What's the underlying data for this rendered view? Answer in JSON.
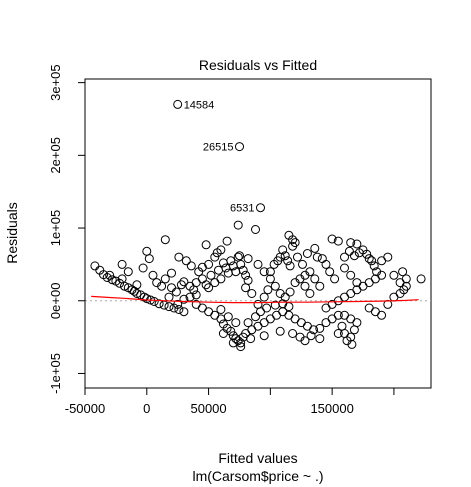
{
  "chart_data": {
    "type": "scatter",
    "title": "Residuals vs Fitted",
    "xlabel": "Fitted values",
    "sublabel": "lm(Carsom$price ~ .)",
    "ylabel": "Residuals",
    "xlim": [
      -50000,
      230000
    ],
    "ylim": [
      -120000,
      305000
    ],
    "x_ticks": [
      {
        "value": -50000,
        "label": "-50000"
      },
      {
        "value": 0,
        "label": "0"
      },
      {
        "value": 50000,
        "label": "50000"
      },
      {
        "value": 150000,
        "label": "150000"
      }
    ],
    "x_minor_ticks": [
      100000,
      200000
    ],
    "y_ticks": [
      {
        "value": -100000,
        "label": "-1e+05"
      },
      {
        "value": 0,
        "label": "0e+00"
      },
      {
        "value": 100000,
        "label": "1e+05"
      },
      {
        "value": 200000,
        "label": "2e+05"
      },
      {
        "value": 300000,
        "label": "3e+05"
      }
    ],
    "grid": false,
    "reference_line_y": 0,
    "colors": {
      "points": "#000000",
      "smoother": "#ff0000",
      "reference": "#aaaaaa"
    },
    "outliers": [
      {
        "label": "14584",
        "x": 25000,
        "y": 270000
      },
      {
        "label": "26515",
        "x": 75000,
        "y": 212000
      },
      {
        "label": "6531",
        "x": 92000,
        "y": 128000
      }
    ],
    "smoother": {
      "x": [
        -45000,
        -30000,
        -15000,
        0,
        15000,
        30000,
        50000,
        70000,
        90000,
        110000,
        130000,
        150000,
        170000,
        190000,
        210000,
        220000
      ],
      "y": [
        6000,
        4500,
        3000,
        1000,
        0,
        -1000,
        -2000,
        -2500,
        -2500,
        -2000,
        -2000,
        -1500,
        -1000,
        -500,
        500,
        1500
      ]
    },
    "points": [
      [
        -42000,
        48000
      ],
      [
        -38000,
        42000
      ],
      [
        -35000,
        36000
      ],
      [
        -32000,
        32000
      ],
      [
        -30000,
        35000
      ],
      [
        -28000,
        29000
      ],
      [
        -25000,
        27000
      ],
      [
        -22000,
        24000
      ],
      [
        -20000,
        30000
      ],
      [
        -18000,
        20000
      ],
      [
        -15000,
        18000
      ],
      [
        -12000,
        15000
      ],
      [
        -10000,
        13000
      ],
      [
        -8000,
        10000
      ],
      [
        -5000,
        8000
      ],
      [
        -2000,
        5000
      ],
      [
        0,
        3000
      ],
      [
        3000,
        1000
      ],
      [
        6000,
        -1000
      ],
      [
        10000,
        -4000
      ],
      [
        14000,
        -6000
      ],
      [
        18000,
        -8000
      ],
      [
        22000,
        -10000
      ],
      [
        26000,
        -12000
      ],
      [
        30000,
        -15000
      ],
      [
        -20000,
        50000
      ],
      [
        -15000,
        40000
      ],
      [
        -8000,
        22000
      ],
      [
        -3000,
        45000
      ],
      [
        0,
        68000
      ],
      [
        2000,
        58000
      ],
      [
        5000,
        35000
      ],
      [
        8000,
        25000
      ],
      [
        12000,
        20000
      ],
      [
        15000,
        30000
      ],
      [
        20000,
        18000
      ],
      [
        24000,
        12000
      ],
      [
        28000,
        22000
      ],
      [
        30000,
        26000
      ],
      [
        35000,
        20000
      ],
      [
        38000,
        15000
      ],
      [
        40000,
        25000
      ],
      [
        45000,
        30000
      ],
      [
        48000,
        22000
      ],
      [
        50000,
        18000
      ],
      [
        52000,
        35000
      ],
      [
        55000,
        25000
      ],
      [
        58000,
        42000
      ],
      [
        60000,
        30000
      ],
      [
        62000,
        52000
      ],
      [
        64000,
        45000
      ],
      [
        66000,
        38000
      ],
      [
        68000,
        55000
      ],
      [
        70000,
        48000
      ],
      [
        72000,
        40000
      ],
      [
        74000,
        60000
      ],
      [
        76000,
        50000
      ],
      [
        78000,
        42000
      ],
      [
        80000,
        35000
      ],
      [
        82000,
        28000
      ],
      [
        20000,
        38000
      ],
      [
        26000,
        60000
      ],
      [
        32000,
        55000
      ],
      [
        36000,
        48000
      ],
      [
        42000,
        40000
      ],
      [
        45000,
        46000
      ],
      [
        50000,
        50000
      ],
      [
        55000,
        60000
      ],
      [
        60000,
        70000
      ],
      [
        65000,
        82000
      ],
      [
        75000,
        62000
      ],
      [
        82000,
        58000
      ],
      [
        90000,
        50000
      ],
      [
        95000,
        40000
      ],
      [
        100000,
        30000
      ],
      [
        15000,
        84000
      ],
      [
        48000,
        77000
      ],
      [
        74000,
        104000
      ],
      [
        88000,
        98000
      ],
      [
        57000,
        66000
      ],
      [
        40000,
        -5000
      ],
      [
        45000,
        -10000
      ],
      [
        50000,
        -15000
      ],
      [
        55000,
        -20000
      ],
      [
        60000,
        -25000
      ],
      [
        62000,
        -32000
      ],
      [
        65000,
        -38000
      ],
      [
        68000,
        -42000
      ],
      [
        70000,
        -48000
      ],
      [
        72000,
        -52000
      ],
      [
        74000,
        -55000
      ],
      [
        76000,
        -58000
      ],
      [
        78000,
        -50000
      ],
      [
        80000,
        -45000
      ],
      [
        85000,
        -40000
      ],
      [
        90000,
        -35000
      ],
      [
        95000,
        -30000
      ],
      [
        100000,
        -25000
      ],
      [
        105000,
        -20000
      ],
      [
        108000,
        -42000
      ],
      [
        60000,
        -12000
      ],
      [
        66000,
        -22000
      ],
      [
        72000,
        -30000
      ],
      [
        82000,
        -30000
      ],
      [
        88000,
        -22000
      ],
      [
        92000,
        -15000
      ],
      [
        97000,
        -10000
      ],
      [
        104000,
        -6000
      ],
      [
        110000,
        -4000
      ],
      [
        115000,
        -8000
      ],
      [
        62000,
        -45000
      ],
      [
        70000,
        -58000
      ],
      [
        76000,
        -63000
      ],
      [
        84000,
        -52000
      ],
      [
        95000,
        -48000
      ],
      [
        100000,
        40000
      ],
      [
        103000,
        50000
      ],
      [
        106000,
        55000
      ],
      [
        108000,
        60000
      ],
      [
        110000,
        70000
      ],
      [
        112000,
        62000
      ],
      [
        114000,
        55000
      ],
      [
        116000,
        48000
      ],
      [
        118000,
        75000
      ],
      [
        120000,
        80000
      ],
      [
        104000,
        20000
      ],
      [
        108000,
        10000
      ],
      [
        112000,
        5000
      ],
      [
        116000,
        12000
      ],
      [
        120000,
        25000
      ],
      [
        124000,
        30000
      ],
      [
        128000,
        35000
      ],
      [
        132000,
        40000
      ],
      [
        136000,
        30000
      ],
      [
        140000,
        20000
      ],
      [
        115000,
        90000
      ],
      [
        118000,
        84000
      ],
      [
        122000,
        60000
      ],
      [
        126000,
        50000
      ],
      [
        130000,
        65000
      ],
      [
        110000,
        -15000
      ],
      [
        115000,
        -20000
      ],
      [
        120000,
        -25000
      ],
      [
        125000,
        -30000
      ],
      [
        130000,
        -35000
      ],
      [
        135000,
        -40000
      ],
      [
        140000,
        -38000
      ],
      [
        145000,
        -30000
      ],
      [
        150000,
        -25000
      ],
      [
        155000,
        -20000
      ],
      [
        118000,
        -45000
      ],
      [
        124000,
        -50000
      ],
      [
        128000,
        -55000
      ],
      [
        133000,
        -48000
      ],
      [
        140000,
        -52000
      ],
      [
        145000,
        -10000
      ],
      [
        150000,
        -5000
      ],
      [
        155000,
        0
      ],
      [
        160000,
        5000
      ],
      [
        165000,
        10000
      ],
      [
        170000,
        15000
      ],
      [
        175000,
        20000
      ],
      [
        180000,
        25000
      ],
      [
        185000,
        30000
      ],
      [
        190000,
        35000
      ],
      [
        160000,
        60000
      ],
      [
        164000,
        68000
      ],
      [
        168000,
        62000
      ],
      [
        172000,
        66000
      ],
      [
        175000,
        70000
      ],
      [
        178000,
        64000
      ],
      [
        180000,
        58000
      ],
      [
        182000,
        55000
      ],
      [
        184000,
        48000
      ],
      [
        186000,
        40000
      ],
      [
        165000,
        80000
      ],
      [
        170000,
        78000
      ],
      [
        160000,
        45000
      ],
      [
        165000,
        35000
      ],
      [
        170000,
        25000
      ],
      [
        150000,
        85000
      ],
      [
        155000,
        82000
      ],
      [
        145000,
        50000
      ],
      [
        148000,
        40000
      ],
      [
        152000,
        30000
      ],
      [
        160000,
        -20000
      ],
      [
        165000,
        -25000
      ],
      [
        170000,
        -30000
      ],
      [
        168000,
        -40000
      ],
      [
        165000,
        -50000
      ],
      [
        162000,
        -55000
      ],
      [
        166000,
        -60000
      ],
      [
        160000,
        -45000
      ],
      [
        158000,
        -35000
      ],
      [
        155000,
        -45000
      ],
      [
        180000,
        -10000
      ],
      [
        185000,
        -15000
      ],
      [
        190000,
        -20000
      ],
      [
        195000,
        -5000
      ],
      [
        200000,
        5000
      ],
      [
        205000,
        10000
      ],
      [
        208000,
        15000
      ],
      [
        210000,
        20000
      ],
      [
        205000,
        25000
      ],
      [
        210000,
        30000
      ],
      [
        200000,
        35000
      ],
      [
        207000,
        40000
      ],
      [
        222000,
        30000
      ],
      [
        190000,
        55000
      ],
      [
        195000,
        60000
      ],
      [
        138000,
        60000
      ],
      [
        142000,
        58000
      ],
      [
        136000,
        72000
      ],
      [
        128000,
        20000
      ],
      [
        132000,
        10000
      ],
      [
        90000,
        -5000
      ],
      [
        95000,
        5000
      ],
      [
        98000,
        15000
      ],
      [
        85000,
        10000
      ],
      [
        80000,
        18000
      ],
      [
        35000,
        5000
      ],
      [
        40000,
        8000
      ],
      [
        30000,
        2000
      ],
      [
        25000,
        -5000
      ],
      [
        18000,
        5000
      ]
    ]
  }
}
